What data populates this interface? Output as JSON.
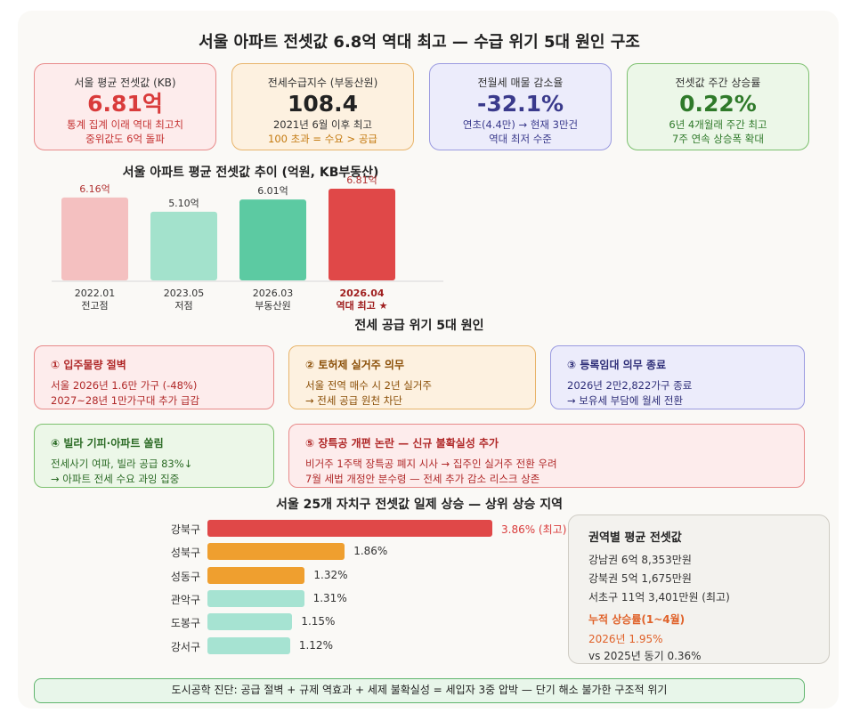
{
  "title": "서울 아파트 전셋값 6.8억 역대 최고 — 수급 위기 5대 원인 구조",
  "kpis": [
    {
      "label": "서울 평균 전셋값 (KB)",
      "value": "6.81억",
      "sub1": "통계 집계 이래 역대 최고치",
      "sub2": "중위값도 6억 돌파"
    },
    {
      "label": "전세수급지수 (부동산원)",
      "value": "108.4",
      "sub1": "2021년 6월 이후 최고",
      "sub2": "100 초과 = 수요 > 공급"
    },
    {
      "label": "전월세 매물 감소율",
      "value": "-32.1%",
      "sub1": "연초(4.4만) → 현재 3만건",
      "sub2": "역대 최저 수준"
    },
    {
      "label": "전셋값 주간 상승률",
      "value": "0.22%",
      "sub1": "6년 4개월래 주간 최고",
      "sub2": "7주 연속 상승폭 확대"
    }
  ],
  "colors": {
    "red": "#e04848",
    "red_light": "#f4c0c0",
    "mint_light": "#a3e2cc",
    "mint": "#5ccaa2",
    "orange": "#ef9f2f",
    "teal_light": "#a6e3d2",
    "purple": "#3a3a8c",
    "green": "#2f7a2a"
  },
  "chart_data": [
    {
      "type": "bar",
      "title": "서울 아파트 평균 전셋값 추이 (억원, KB부동산)",
      "categories": [
        "2022.01",
        "2023.05",
        "2026.03",
        "2026.04"
      ],
      "category_notes": [
        "전고점",
        "저점",
        "부동산원",
        "역대 최고 ★"
      ],
      "values": [
        6.16,
        5.1,
        6.01,
        6.81
      ],
      "value_labels": [
        "6.16억",
        "5.10억",
        "6.01억",
        "6.81억"
      ],
      "ylim": [
        0,
        6.81
      ]
    },
    {
      "type": "bar",
      "orientation": "horizontal",
      "title": "서울 25개 자치구 전셋값 일제 상승 — 상위 상승 지역",
      "categories": [
        "강북구",
        "성북구",
        "성동구",
        "관악구",
        "도봉구",
        "강서구"
      ],
      "values": [
        3.86,
        1.86,
        1.32,
        1.31,
        1.15,
        1.12
      ],
      "value_labels": [
        "3.86% (최고)",
        "1.86%",
        "1.32%",
        "1.31%",
        "1.15%",
        "1.12%"
      ],
      "xlim": [
        0,
        3.86
      ]
    }
  ],
  "causes_title": "전세 공급 위기 5대 원인",
  "causes": [
    {
      "title": "① 입주물량 절벽",
      "line1": "서울 2026년 1.6만 가구 (-48%)",
      "line2": "2027~28년 1만가구대 추가 급감"
    },
    {
      "title": "② 토허제 실거주 의무",
      "line1": "서울 전역 매수 시 2년 실거주",
      "line2": "→ 전세 공급 원천 차단"
    },
    {
      "title": "③ 등록임대 의무 종료",
      "line1": "2026년 2만2,822가구 종료",
      "line2": "→ 보유세 부담에 월세 전환"
    },
    {
      "title": "④ 빌라 기피·아파트 쏠림",
      "line1": "전세사기 여파, 빌라 공급 83%↓",
      "line2": "→ 아파트 전세 수요 과잉 집중"
    },
    {
      "title": "⑤ 장특공 개편 논란 — 신규 불확실성 추가",
      "line1": "비거주 1주택 장특공 폐지 시사 → 집주인 실거주 전환 우려",
      "line2": "7월 세법 개정안 분수령 — 전세 추가 감소 리스크 상존"
    }
  ],
  "region": {
    "title": "권역별 평균 전셋값",
    "lines": [
      "강남권 6억 8,353만원",
      "강북권 5억 1,675만원",
      "서초구 11억 3,401만원 (최고)"
    ],
    "cum_title": "누적 상승률(1~4월)",
    "cum_value": "2026년 1.95%",
    "cum_compare": "vs 2025년 동기 0.36%"
  },
  "footer": "도시공학 진단: 공급 절벽 + 규제 역효과 + 세제 불확실성 = 세입자 3중 압박 — 단기 해소 불가한 구조적 위기"
}
